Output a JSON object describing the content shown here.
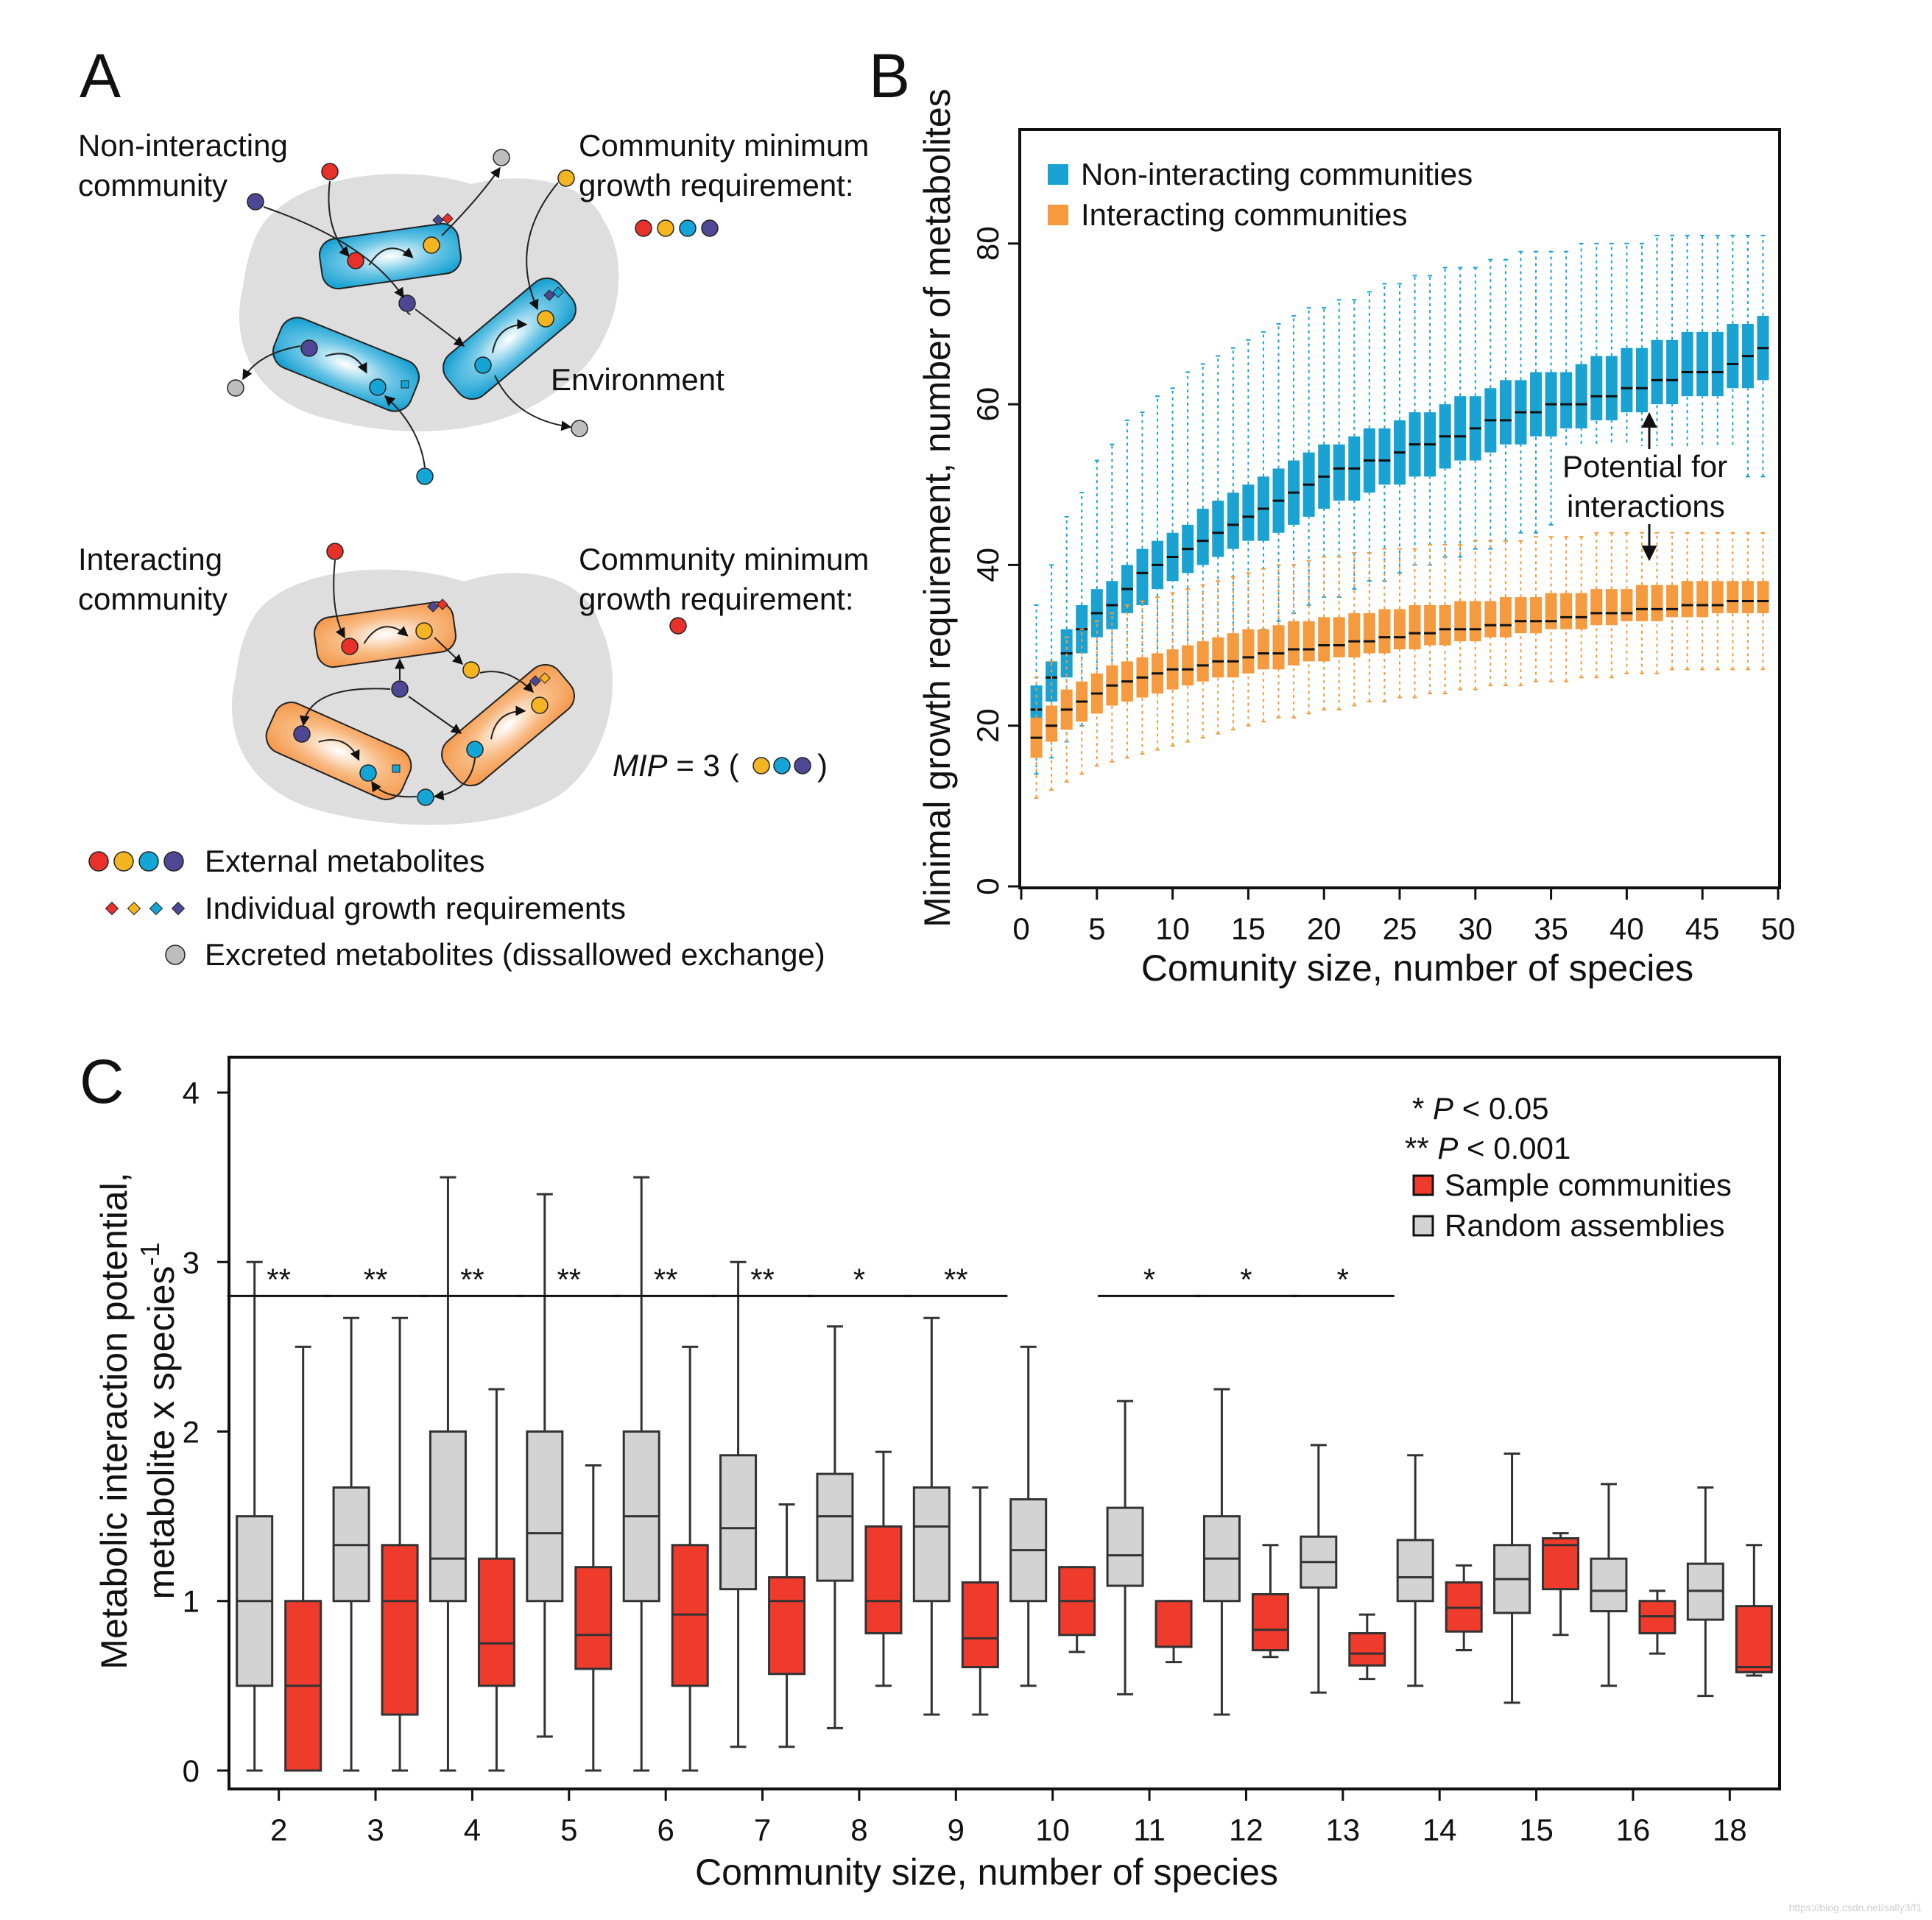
{
  "panel_labels": {
    "a": "A",
    "b": "B",
    "c": "C"
  },
  "panel_a": {
    "non_interacting_title": [
      "Non-interacting",
      "community"
    ],
    "interacting_title": [
      "Interacting",
      "community"
    ],
    "cmgr_label": [
      "Community minimum",
      "growth requirement:"
    ],
    "environment_label": "Environment",
    "mip_label": {
      "italic": "MIP",
      "rest": " = 3 ("
    },
    "mip_close": ")",
    "legend": [
      "External metabolites",
      "Individual growth requirements",
      "Excreted metabolites (dissallowed exchange)"
    ],
    "colors": {
      "red": "#e8312a",
      "yellow": "#f5b520",
      "cyan": "#12a5d6",
      "purple": "#4e4894",
      "grey": "#bdbdbd",
      "cell_blue": "#1aa2d3",
      "cell_orange": "#f59a4e",
      "env_grey": "#dedede"
    }
  },
  "chart_data": [
    {
      "id": "B",
      "type": "box",
      "xlabel": "Comunity size, number of species",
      "ylabel": "Minimal growth requirement, number of metabolites",
      "xlim": [
        0,
        50
      ],
      "ylim": [
        0,
        94
      ],
      "xticks": [
        "0",
        "5",
        "10",
        "15",
        "20",
        "25",
        "30",
        "35",
        "40",
        "45",
        "50"
      ],
      "yticks": [
        "0",
        "20",
        "40",
        "60",
        "80"
      ],
      "annotation": [
        "Potential for",
        "interactions"
      ],
      "x": [
        1,
        2,
        3,
        4,
        5,
        6,
        7,
        8,
        9,
        10,
        11,
        12,
        13,
        14,
        15,
        16,
        17,
        18,
        19,
        20,
        21,
        22,
        23,
        24,
        25,
        26,
        27,
        28,
        29,
        30,
        31,
        32,
        33,
        34,
        35,
        36,
        37,
        38,
        39,
        40,
        41,
        42,
        43,
        44,
        45,
        46,
        47,
        48,
        49
      ],
      "series": [
        {
          "name": "Non-interacting communities",
          "color": "#1aa2d3",
          "median": [
            22,
            26,
            29,
            32,
            34,
            35,
            37,
            39,
            40,
            41,
            42,
            43,
            44,
            45,
            46,
            47,
            48,
            49,
            50,
            51,
            52,
            52,
            53,
            53,
            54,
            55,
            55,
            56,
            56,
            57,
            58,
            58,
            59,
            59,
            60,
            60,
            60,
            61,
            61,
            62,
            62,
            63,
            63,
            64,
            64,
            64,
            65,
            66,
            67
          ],
          "q1": [
            20,
            23,
            26,
            29,
            31,
            32,
            34,
            35,
            37,
            38,
            39,
            40,
            41,
            42,
            43,
            43,
            44,
            45,
            46,
            47,
            48,
            48,
            49,
            50,
            50,
            51,
            51,
            52,
            53,
            53,
            54,
            55,
            55,
            56,
            56,
            57,
            57,
            58,
            58,
            59,
            59,
            60,
            60,
            61,
            61,
            61,
            62,
            62,
            63
          ],
          "q3": [
            25,
            28,
            32,
            35,
            37,
            38,
            40,
            42,
            43,
            44,
            45,
            47,
            48,
            49,
            50,
            51,
            52,
            53,
            54,
            55,
            55,
            56,
            57,
            57,
            58,
            59,
            59,
            60,
            61,
            61,
            62,
            63,
            63,
            64,
            64,
            64,
            65,
            66,
            66,
            67,
            67,
            68,
            68,
            69,
            69,
            69,
            70,
            70,
            71
          ],
          "whisker_low": [
            14,
            16,
            18,
            20,
            22,
            23,
            24,
            25,
            27,
            28,
            28,
            29,
            30,
            31,
            31,
            32,
            33,
            34,
            35,
            36,
            36,
            37,
            38,
            38,
            39,
            40,
            40,
            41,
            41,
            42,
            42,
            43,
            44,
            44,
            45,
            45,
            46,
            46,
            47,
            47,
            48,
            48,
            49,
            49,
            50,
            50,
            50,
            51,
            51
          ],
          "whisker_high": [
            35,
            40,
            46,
            49,
            53,
            55,
            58,
            59,
            61,
            62,
            64,
            65,
            66,
            67,
            68,
            69,
            70,
            71,
            72,
            72,
            73,
            73,
            74,
            75,
            75,
            76,
            76,
            77,
            77,
            77,
            78,
            78,
            79,
            79,
            79,
            79,
            80,
            80,
            80,
            80,
            80,
            81,
            81,
            81,
            81,
            81,
            81,
            81,
            81
          ]
        },
        {
          "name": "Interacting communities",
          "color": "#f59a3e",
          "median": [
            18.5,
            20,
            22,
            23,
            24,
            25,
            25.5,
            26,
            26.5,
            27,
            27,
            27.5,
            28,
            28,
            28.5,
            29,
            29,
            29.5,
            29.5,
            30,
            30,
            30.5,
            30.5,
            31,
            31,
            31.5,
            31.5,
            32,
            32,
            32,
            32.5,
            32.5,
            33,
            33,
            33,
            33.5,
            33.5,
            34,
            34,
            34,
            34.5,
            34.5,
            34.5,
            35,
            35,
            35,
            35.5,
            35.5,
            35.5
          ],
          "q1": [
            16,
            18,
            19.5,
            20.5,
            21.5,
            22.5,
            23,
            23.5,
            24,
            24.5,
            25,
            25.5,
            26,
            26,
            26.5,
            27,
            27,
            27.5,
            28,
            28,
            28.5,
            28.5,
            29,
            29,
            29.5,
            29.5,
            30,
            30,
            30.5,
            30.5,
            31,
            31,
            31.5,
            31.5,
            32,
            32,
            32,
            32.5,
            32.5,
            33,
            33,
            33,
            33.5,
            33.5,
            33.5,
            34,
            34,
            34,
            34
          ],
          "q3": [
            21,
            22.5,
            24.5,
            25.5,
            26.5,
            27.5,
            28,
            28.5,
            29,
            29.5,
            30,
            30.5,
            31,
            31.5,
            32,
            32,
            32.5,
            33,
            33,
            33.5,
            33.5,
            34,
            34,
            34.5,
            34.5,
            35,
            35,
            35,
            35.5,
            35.5,
            35.5,
            36,
            36,
            36,
            36.5,
            36.5,
            36.5,
            37,
            37,
            37,
            37.5,
            37.5,
            37.5,
            38,
            38,
            38,
            38,
            38,
            38
          ],
          "whisker_low": [
            11,
            12,
            13,
            14,
            15,
            15.5,
            16,
            16.5,
            17,
            17.5,
            18,
            18.5,
            19,
            19.5,
            20,
            20.5,
            21,
            21,
            21.5,
            22,
            22,
            22.5,
            23,
            23,
            23.5,
            23.5,
            24,
            24,
            24.5,
            24.5,
            25,
            25,
            25,
            25.5,
            25.5,
            25.5,
            26,
            26,
            26,
            26.5,
            26.5,
            26.5,
            27,
            27,
            27,
            27,
            27,
            27,
            27
          ],
          "whisker_high": [
            26,
            28,
            31,
            32,
            33,
            34,
            35,
            35.5,
            36,
            36.5,
            37,
            37.5,
            38,
            38.5,
            39,
            39.5,
            40,
            40,
            40.5,
            41,
            41,
            41.5,
            41.5,
            42,
            42,
            42,
            42.5,
            42.5,
            42.5,
            43,
            43,
            43,
            43,
            43.5,
            43.5,
            43.5,
            43.5,
            44,
            44,
            44,
            44,
            44,
            44,
            44,
            44,
            44,
            44,
            44,
            44
          ]
        }
      ],
      "legend": [
        "Non-interacting communities",
        "Interacting communities"
      ]
    },
    {
      "id": "C",
      "type": "box",
      "xlabel": "Community size, number of species",
      "ylabel_line1": "Metabolic interaction potential,",
      "ylabel_line2": "metabolite x species",
      "ylabel_sup": "-1",
      "ylim": [
        -0.1,
        4.2
      ],
      "yticks": [
        "0",
        "1",
        "2",
        "3",
        "4"
      ],
      "categories": [
        "2",
        "3",
        "4",
        "5",
        "6",
        "7",
        "8",
        "9",
        "10",
        "11",
        "12",
        "13",
        "14",
        "15",
        "16",
        "18"
      ],
      "significance": [
        "**",
        "**",
        "**",
        "**",
        "**",
        "**",
        "*",
        "**",
        "",
        "*",
        "*",
        "*",
        "",
        "",
        "",
        ""
      ],
      "legend": {
        "p1_star": "* ",
        "p1_italic": "P",
        "p1_rest": " < 0.05",
        "p2_star": "** ",
        "p2_italic": "P",
        "p2_rest": " < 0.001",
        "sample": "Sample communities",
        "random": "Random assemblies"
      },
      "series": [
        {
          "name": "Random assemblies",
          "color": "#d3d3d3",
          "boxes": [
            {
              "min": 0,
              "q1": 0.5,
              "median": 1.0,
              "q3": 1.5,
              "max": 3.0
            },
            {
              "min": 0,
              "q1": 1.0,
              "median": 1.33,
              "q3": 1.67,
              "max": 2.67
            },
            {
              "min": 0,
              "q1": 1.0,
              "median": 1.25,
              "q3": 2.0,
              "max": 3.5
            },
            {
              "min": 0.2,
              "q1": 1.0,
              "median": 1.4,
              "q3": 2.0,
              "max": 3.4
            },
            {
              "min": 0,
              "q1": 1.0,
              "median": 1.5,
              "q3": 2.0,
              "max": 3.5
            },
            {
              "min": 0.14,
              "q1": 1.07,
              "median": 1.43,
              "q3": 1.86,
              "max": 3.0
            },
            {
              "min": 0.25,
              "q1": 1.12,
              "median": 1.5,
              "q3": 1.75,
              "max": 2.62
            },
            {
              "min": 0.33,
              "q1": 1.0,
              "median": 1.44,
              "q3": 1.67,
              "max": 2.67
            },
            {
              "min": 0.5,
              "q1": 1.0,
              "median": 1.3,
              "q3": 1.6,
              "max": 2.5
            },
            {
              "min": 0.45,
              "q1": 1.09,
              "median": 1.27,
              "q3": 1.55,
              "max": 2.18
            },
            {
              "min": 0.33,
              "q1": 1.0,
              "median": 1.25,
              "q3": 1.5,
              "max": 2.25
            },
            {
              "min": 0.46,
              "q1": 1.08,
              "median": 1.23,
              "q3": 1.38,
              "max": 1.92
            },
            {
              "min": 0.5,
              "q1": 1.0,
              "median": 1.14,
              "q3": 1.36,
              "max": 1.86
            },
            {
              "min": 0.4,
              "q1": 0.93,
              "median": 1.13,
              "q3": 1.33,
              "max": 1.87
            },
            {
              "min": 0.5,
              "q1": 0.94,
              "median": 1.06,
              "q3": 1.25,
              "max": 1.69
            },
            {
              "min": 0.44,
              "q1": 0.89,
              "median": 1.06,
              "q3": 1.22,
              "max": 1.67
            }
          ]
        },
        {
          "name": "Sample communities",
          "color": "#ef3b2c",
          "boxes": [
            {
              "min": 0,
              "q1": 0,
              "median": 0.5,
              "q3": 1.0,
              "max": 2.5
            },
            {
              "min": 0,
              "q1": 0.33,
              "median": 1.0,
              "q3": 1.33,
              "max": 2.67
            },
            {
              "min": 0,
              "q1": 0.5,
              "median": 0.75,
              "q3": 1.25,
              "max": 2.25
            },
            {
              "min": 0,
              "q1": 0.6,
              "median": 0.8,
              "q3": 1.2,
              "max": 1.8
            },
            {
              "min": 0,
              "q1": 0.5,
              "median": 0.92,
              "q3": 1.33,
              "max": 2.5
            },
            {
              "min": 0.14,
              "q1": 0.57,
              "median": 1.0,
              "q3": 1.14,
              "max": 1.57
            },
            {
              "min": 0.5,
              "q1": 0.81,
              "median": 1.0,
              "q3": 1.44,
              "max": 1.88
            },
            {
              "min": 0.33,
              "q1": 0.61,
              "median": 0.78,
              "q3": 1.11,
              "max": 1.67
            },
            {
              "min": 0.7,
              "q1": 0.8,
              "median": 1.0,
              "q3": 1.2,
              "max": 1.2
            },
            {
              "min": 0.64,
              "q1": 0.73,
              "median": 0.73,
              "q3": 1.0,
              "max": 1.0
            },
            {
              "min": 0.67,
              "q1": 0.71,
              "median": 0.83,
              "q3": 1.04,
              "max": 1.33
            },
            {
              "min": 0.54,
              "q1": 0.62,
              "median": 0.69,
              "q3": 0.81,
              "max": 0.92
            },
            {
              "min": 0.71,
              "q1": 0.82,
              "median": 0.96,
              "q3": 1.11,
              "max": 1.21
            },
            {
              "min": 0.8,
              "q1": 1.07,
              "median": 1.33,
              "q3": 1.37,
              "max": 1.4
            },
            {
              "min": 0.69,
              "q1": 0.81,
              "median": 0.91,
              "q3": 1.0,
              "max": 1.06
            },
            {
              "min": 0.56,
              "q1": 0.58,
              "median": 0.61,
              "q3": 0.97,
              "max": 1.33
            }
          ]
        }
      ]
    }
  ],
  "watermark": "https://blog.csdn.net/sally3/f1"
}
